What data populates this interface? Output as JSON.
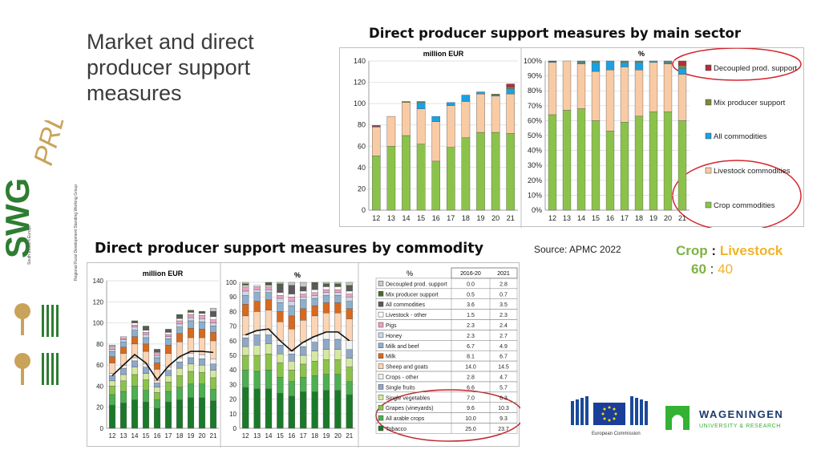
{
  "slide": {
    "title": "Market and direct producer support measures",
    "title_top": "Direct producer support measures by main sector",
    "title_bottom": "Direct producer support measures by commodity",
    "source": "Source: APMC 2022",
    "ratio_labels": {
      "crop": "Crop",
      "sep": ":",
      "livestock": "Livestock"
    },
    "ratio_values": {
      "crop": "60",
      "sep": ":",
      "livestock": "40"
    }
  },
  "logos": {
    "swg": "SWG",
    "swg_prd": "PRD",
    "swg_caption": "Regional Rural Development Standing Working Group",
    "swg_caption2": "South Eastern Europe",
    "ec_label": "European Commission",
    "wur_name": "WAGENINGEN",
    "wur_sub": "UNIVERSITY & RESEARCH"
  },
  "chart_data": [
    {
      "type": "bar",
      "stacked": true,
      "title": "million EUR",
      "categories": [
        "12",
        "13",
        "14",
        "15",
        "16",
        "17",
        "18",
        "19",
        "20",
        "21"
      ],
      "ylim": [
        0,
        140
      ],
      "yticks": [
        0,
        20,
        40,
        60,
        80,
        100,
        120,
        140
      ],
      "series": [
        {
          "name": "Crop commodities",
          "color": "#8bc34a",
          "values": [
            51,
            60,
            70,
            62,
            46,
            59,
            68,
            73,
            73,
            72
          ]
        },
        {
          "name": "Livestock commodities",
          "color": "#f9cba4",
          "values": [
            27,
            28,
            31,
            33,
            37,
            39,
            34,
            36,
            34,
            37
          ]
        },
        {
          "name": "All commodities",
          "color": "#1ba1e2",
          "values": [
            0.5,
            0,
            0,
            6,
            5,
            3,
            6,
            2,
            1,
            5
          ]
        },
        {
          "name": "Mix producer support",
          "color": "#7a8a3a",
          "values": [
            0,
            0,
            1,
            1,
            0,
            0,
            0,
            0,
            1,
            1.5
          ]
        },
        {
          "name": "Decoupled prod. support",
          "color": "#b22e3a",
          "values": [
            1,
            0,
            0,
            0,
            0,
            0,
            0,
            0,
            0,
            3
          ]
        }
      ]
    },
    {
      "type": "bar",
      "stacked": true,
      "title": "%",
      "categories": [
        "12",
        "13",
        "14",
        "15",
        "16",
        "17",
        "18",
        "19",
        "20",
        "21"
      ],
      "ylim": [
        0,
        100
      ],
      "yticks": [
        "0%",
        "10%",
        "20%",
        "30%",
        "40%",
        "50%",
        "60%",
        "70%",
        "80%",
        "90%",
        "100%"
      ],
      "legend": [
        "Decoupled prod. support",
        "Mix producer support",
        "All commodities",
        "Livestock commodities",
        "Crop commodities"
      ],
      "series": [
        {
          "name": "Crop commodities",
          "color": "#8bc34a",
          "values": [
            64,
            67,
            68,
            60,
            53,
            59,
            63,
            66,
            66,
            60
          ]
        },
        {
          "name": "Livestock commodities",
          "color": "#f9cba4",
          "values": [
            35,
            33,
            30,
            33,
            41,
            37,
            31,
            33,
            32,
            31
          ]
        },
        {
          "name": "All commodities",
          "color": "#1ba1e2",
          "values": [
            0.5,
            0,
            1,
            6,
            6,
            3,
            5,
            1,
            1,
            4
          ]
        },
        {
          "name": "Mix producer support",
          "color": "#7a8a3a",
          "values": [
            0,
            0,
            1,
            1,
            0,
            1,
            1,
            0,
            1,
            2
          ]
        },
        {
          "name": "Decoupled prod. support",
          "color": "#b22e3a",
          "values": [
            0.5,
            0,
            0,
            0,
            0,
            0,
            0,
            0,
            0,
            3
          ]
        }
      ]
    },
    {
      "type": "bar",
      "stacked": true,
      "title": "million EUR",
      "categories": [
        "12",
        "13",
        "14",
        "15",
        "16",
        "17",
        "18",
        "19",
        "20",
        "21"
      ],
      "ylim": [
        0,
        140
      ],
      "yticks": [
        0,
        20,
        40,
        60,
        80,
        100,
        120,
        140
      ],
      "line_name": "Crop",
      "line_values": [
        50,
        60,
        70,
        62,
        46,
        59,
        68,
        73,
        73,
        72
      ],
      "series": [
        {
          "name": "Tobacco",
          "color": "#1a7a2a",
          "values": [
            22,
            24,
            27,
            25,
            19,
            25,
            27,
            29,
            29,
            26
          ]
        },
        {
          "name": "All arable crops",
          "color": "#4caf50",
          "values": [
            10,
            11,
            13,
            11,
            8,
            10,
            12,
            13,
            13,
            11
          ]
        },
        {
          "name": "Grapes (vineyards)",
          "color": "#8bc34a",
          "values": [
            8,
            10,
            11,
            10,
            7,
            9,
            11,
            12,
            11,
            11
          ]
        },
        {
          "name": "Single vegetables",
          "color": "#d4e8a0",
          "values": [
            5,
            6,
            7,
            6,
            5,
            6,
            7,
            7,
            7,
            7
          ]
        },
        {
          "name": "Single fruits",
          "color": "#8fa8c8",
          "values": [
            5,
            6,
            6,
            6,
            4,
            5,
            6,
            6,
            6,
            6
          ]
        },
        {
          "name": "Crops - other",
          "color": "#f2f2f2",
          "values": [
            2,
            3,
            3,
            3,
            2,
            3,
            4,
            4,
            4,
            5
          ]
        },
        {
          "name": "Sheep and goats",
          "color": "#fbd5b5",
          "values": [
            10,
            11,
            13,
            12,
            11,
            13,
            15,
            15,
            16,
            17
          ]
        },
        {
          "name": "Milk",
          "color": "#d8691f",
          "values": [
            6,
            6,
            7,
            7,
            6,
            8,
            8,
            9,
            8,
            8
          ]
        },
        {
          "name": "Milk and beef",
          "color": "#8fb0cc",
          "values": [
            5,
            5,
            6,
            6,
            5,
            6,
            6,
            7,
            7,
            6
          ]
        },
        {
          "name": "Honey",
          "color": "#c9d9ec",
          "values": [
            2,
            2,
            3,
            3,
            2,
            2,
            3,
            3,
            3,
            3
          ]
        },
        {
          "name": "Pigs",
          "color": "#f0a0c0",
          "values": [
            2,
            2,
            2,
            2,
            2,
            2,
            3,
            3,
            3,
            3
          ]
        },
        {
          "name": "Livestock - other",
          "color": "#ffffff",
          "values": [
            1,
            1,
            2,
            2,
            1,
            2,
            2,
            2,
            2,
            3
          ]
        },
        {
          "name": "All commodities",
          "color": "#5a5a5a",
          "values": [
            0,
            0,
            1,
            3,
            3,
            2,
            3,
            1,
            1,
            4
          ]
        },
        {
          "name": "Mix producer support",
          "color": "#4a6a2a",
          "values": [
            0,
            0,
            1,
            1,
            0,
            1,
            1,
            1,
            1,
            1
          ]
        },
        {
          "name": "Decoupled prod. support",
          "color": "#c8c8c8",
          "values": [
            1,
            0,
            0,
            0,
            0,
            0,
            0,
            0,
            0,
            3
          ]
        }
      ]
    },
    {
      "type": "bar",
      "stacked": true,
      "title": "%",
      "categories": [
        "12",
        "13",
        "14",
        "15",
        "16",
        "17",
        "18",
        "19",
        "20",
        "21"
      ],
      "ylim": [
        0,
        100
      ],
      "yticks": [
        0,
        10,
        20,
        30,
        40,
        50,
        60,
        70,
        80,
        90,
        100
      ],
      "line_name": "Crop",
      "line_values": [
        64,
        67,
        68,
        60,
        53,
        59,
        63,
        66,
        66,
        60
      ],
      "series": [
        {
          "name": "Tobacco",
          "color": "#1a7a2a",
          "values": [
            28,
            27,
            27,
            24,
            22,
            25,
            25,
            26,
            26,
            23
          ]
        },
        {
          "name": "All arable crops",
          "color": "#4caf50",
          "values": [
            12,
            12,
            13,
            11,
            10,
            10,
            11,
            11,
            11,
            9
          ]
        },
        {
          "name": "Grapes (vineyards)",
          "color": "#8bc34a",
          "values": [
            10,
            11,
            11,
            10,
            8,
            9,
            10,
            10,
            10,
            10
          ]
        },
        {
          "name": "Single vegetables",
          "color": "#d4e8a0",
          "values": [
            6,
            7,
            7,
            6,
            6,
            6,
            7,
            7,
            7,
            6
          ]
        },
        {
          "name": "Single fruits",
          "color": "#8fa8c8",
          "values": [
            6,
            7,
            6,
            6,
            5,
            6,
            6,
            7,
            7,
            6
          ]
        },
        {
          "name": "Crops - other",
          "color": "#f2f2f2",
          "values": [
            2,
            3,
            4,
            3,
            2,
            3,
            4,
            5,
            5,
            6
          ]
        },
        {
          "name": "Sheep and goats",
          "color": "#fbd5b5",
          "values": [
            13,
            13,
            13,
            13,
            15,
            15,
            14,
            13,
            13,
            15
          ]
        },
        {
          "name": "Milk",
          "color": "#d8691f",
          "values": [
            8,
            7,
            7,
            7,
            9,
            8,
            7,
            7,
            7,
            7
          ]
        },
        {
          "name": "Milk and beef",
          "color": "#8fb0cc",
          "values": [
            6,
            6,
            5,
            6,
            7,
            6,
            5,
            5,
            5,
            5
          ]
        },
        {
          "name": "Honey",
          "color": "#c9d9ec",
          "values": [
            3,
            2,
            2,
            3,
            3,
            2,
            2,
            2,
            2,
            3
          ]
        },
        {
          "name": "Pigs",
          "color": "#f0a0c0",
          "values": [
            3,
            2,
            2,
            2,
            3,
            2,
            2,
            2,
            2,
            2
          ]
        },
        {
          "name": "Livestock - other",
          "color": "#ffffff",
          "values": [
            1,
            1,
            1,
            2,
            2,
            2,
            2,
            2,
            2,
            2
          ]
        },
        {
          "name": "All commodities",
          "color": "#5a5a5a",
          "values": [
            0,
            0,
            1,
            5,
            6,
            2,
            4,
            1,
            1,
            3
          ]
        },
        {
          "name": "Mix producer support",
          "color": "#4a6a2a",
          "values": [
            1,
            0,
            1,
            1,
            0,
            1,
            1,
            1,
            1,
            1
          ]
        },
        {
          "name": "Decoupled prod. support",
          "color": "#c8c8c8",
          "values": [
            1,
            0,
            0,
            1,
            2,
            3,
            0,
            1,
            1,
            2
          ]
        }
      ]
    },
    {
      "type": "table",
      "title": "%",
      "columns": [
        "2016-20",
        "2021"
      ],
      "rows": [
        {
          "label": "Decoupled prod. support",
          "color": "#c8c8c8",
          "v1": "0.0",
          "v2": "2.8"
        },
        {
          "label": "Mix producer support",
          "color": "#4a6a2a",
          "v1": "0.5",
          "v2": "0.7"
        },
        {
          "label": "All commodities",
          "color": "#5a5a5a",
          "v1": "3.6",
          "v2": "3.5"
        },
        {
          "label": "Livestock - other",
          "color": "#ffffff",
          "v1": "1.5",
          "v2": "2.3"
        },
        {
          "label": "Pigs",
          "color": "#f0a0c0",
          "v1": "2.3",
          "v2": "2.4"
        },
        {
          "label": "Honey",
          "color": "#c9d9ec",
          "v1": "2.3",
          "v2": "2.7"
        },
        {
          "label": "Milk and beef",
          "color": "#8fb0cc",
          "v1": "6.7",
          "v2": "4.9"
        },
        {
          "label": "Milk",
          "color": "#d8691f",
          "v1": "8.1",
          "v2": "6.7"
        },
        {
          "label": "Sheep and goats",
          "color": "#fbd5b5",
          "v1": "14.0",
          "v2": "14.5"
        },
        {
          "label": "Crops - other",
          "color": "#f2f2f2",
          "v1": "2.8",
          "v2": "4.7"
        },
        {
          "label": "Single fruits",
          "color": "#8fa8c8",
          "v1": "6.6",
          "v2": "5.7"
        },
        {
          "label": "Single vegetables",
          "color": "#d4e8a0",
          "v1": "7.0",
          "v2": "6.3"
        },
        {
          "label": "Grapes (vineyards)",
          "color": "#8bc34a",
          "v1": "9.6",
          "v2": "10.3"
        },
        {
          "label": "All arable crops",
          "color": "#4caf50",
          "v1": "10.0",
          "v2": "9.3"
        },
        {
          "label": "Tobacco",
          "color": "#1a7a2a",
          "v1": "25.0",
          "v2": "23.7"
        }
      ]
    }
  ]
}
